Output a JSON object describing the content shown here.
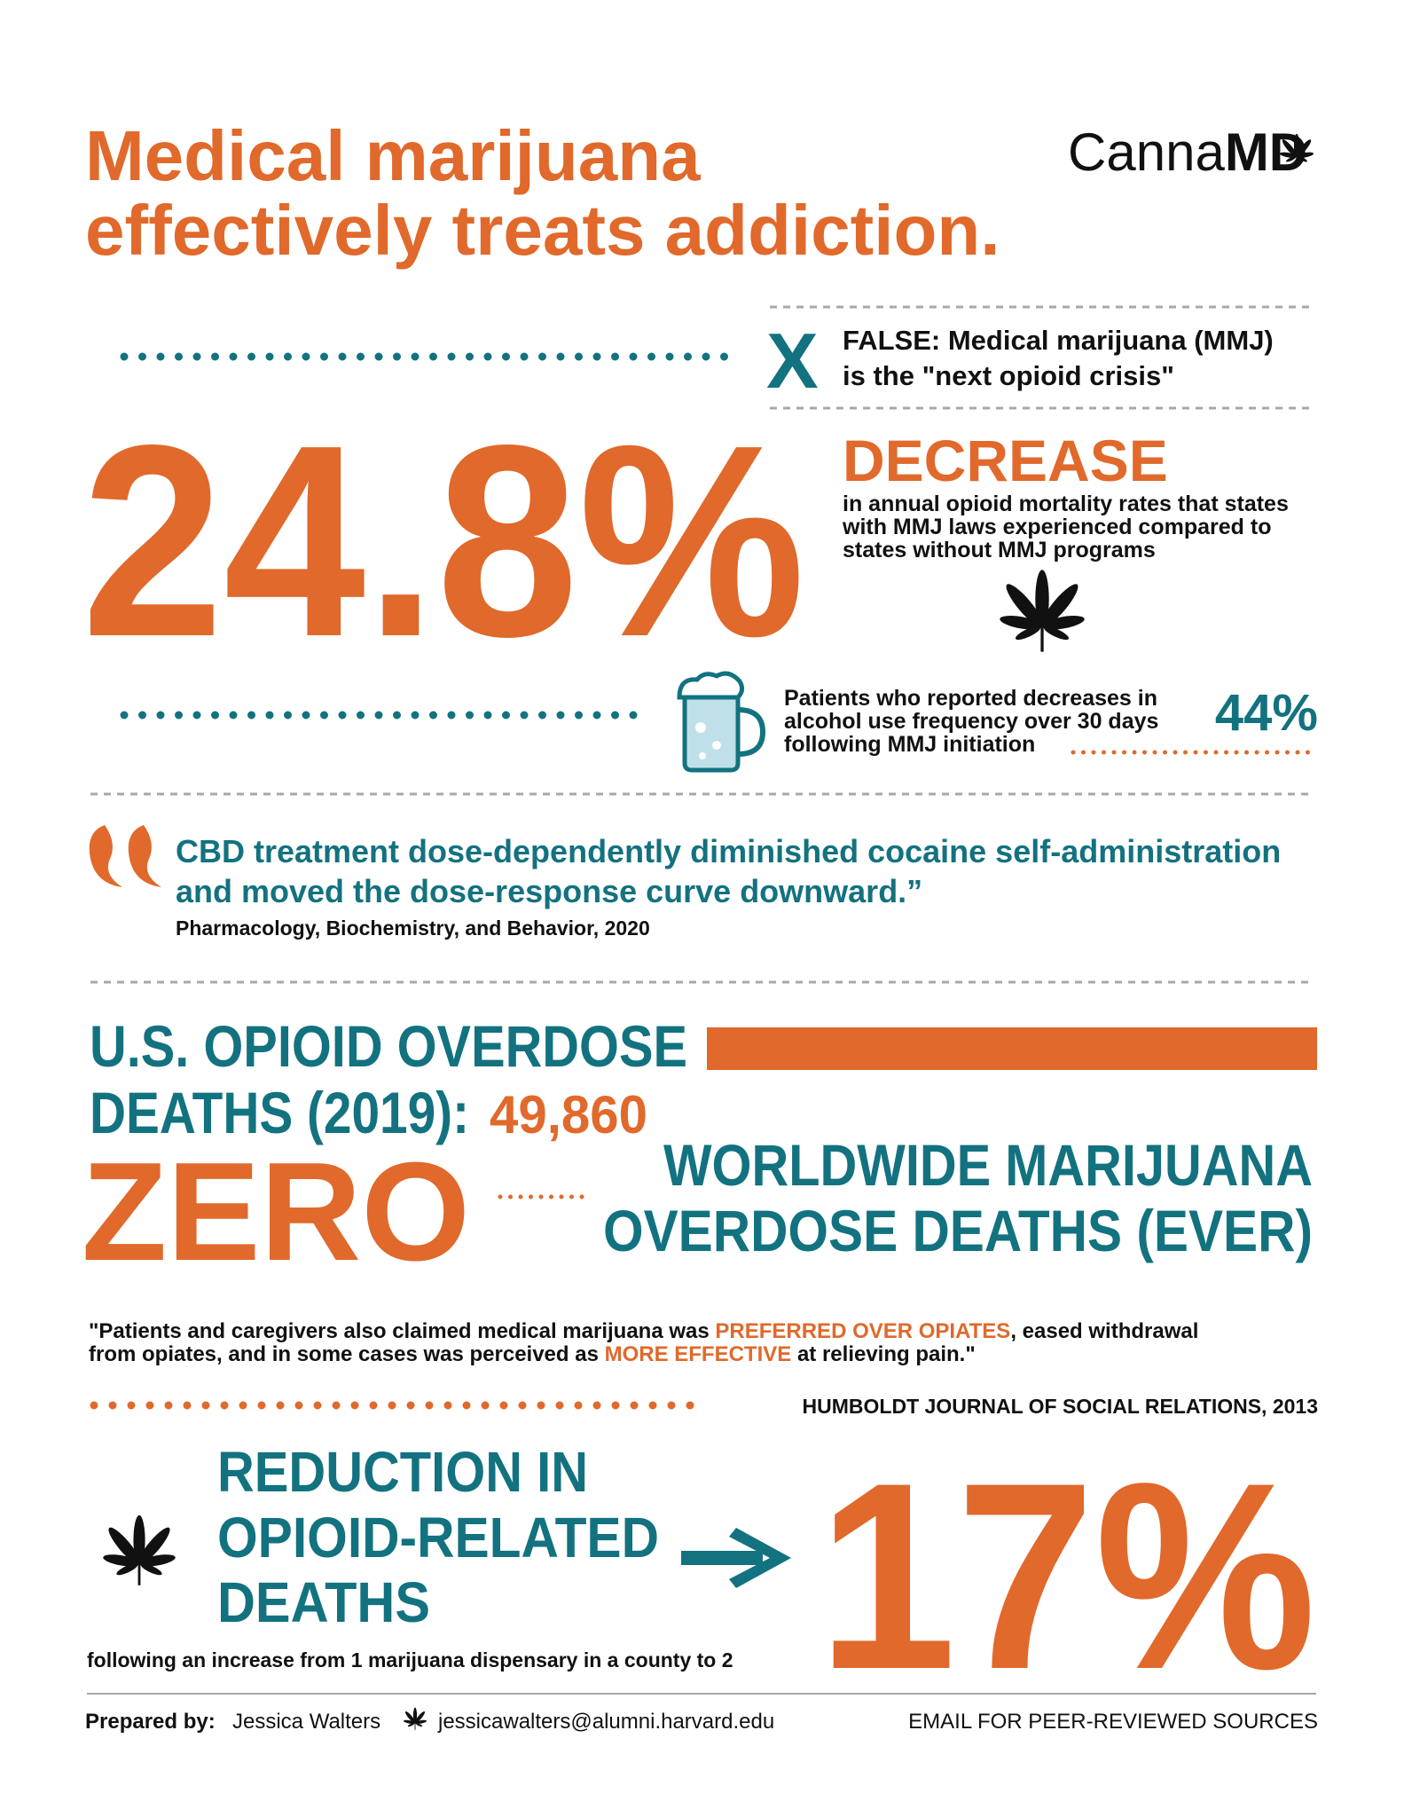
{
  "header": {
    "title": [
      "Medical marijuana",
      "effectively treats addiction."
    ],
    "logo": {
      "name": "Canna",
      "mark": "MD"
    }
  },
  "myth": {
    "marker": "X",
    "lines": [
      "FALSE: Medical marijuana (MMJ)",
      "is the \"next opioid crisis\""
    ]
  },
  "stat_opioid": {
    "value": "24.8%",
    "label": "DECREASE",
    "lines": [
      "in annual opioid mortality rates that states",
      "with MMJ laws experienced compared to",
      "states without MMJ programs"
    ]
  },
  "stat_alcohol": {
    "lines": [
      "Patients who reported decreases in",
      "alcohol use frequency over 30 days",
      "following MMJ initiation"
    ],
    "value": "44%"
  },
  "quote_cbd": {
    "lines": [
      "CBD treatment dose-dependently diminished cocaine self-administration",
      "and moved the dose-response curve downward.”"
    ],
    "source": "Pharmacology, Biochemistry, and Behavior, 2020"
  },
  "overdose": {
    "lines": [
      "U.S. OPIOID OVERDOSE",
      "DEATHS (2019):"
    ],
    "value": "49,860",
    "zero": "ZERO",
    "world_lines": [
      "WORLDWIDE MARIJUANA",
      "OVERDOSE DEATHS (EVER)"
    ]
  },
  "quote_humboldt": {
    "lines": [
      [
        "\"Patients and caregivers also claimed medical marijuana was ",
        "PREFERRED OVER OPIATES",
        ", eased withdrawal"
      ],
      [
        "from opiates, and in some cases was perceived as ",
        "MORE EFFECTIVE",
        " at relieving pain.\""
      ]
    ],
    "source": "HUMBOLDT JOURNAL OF SOCIAL RELATIONS, 2013"
  },
  "stat_dispensary": {
    "lines": [
      "REDUCTION IN",
      "OPIOID-RELATED",
      "DEATHS"
    ],
    "value": "17%",
    "note": "following an increase from 1 marijuana dispensary in a county to 2"
  },
  "footer": {
    "prepared_label": "Prepared by:",
    "author": "Jessica Walters",
    "email": "jessicawalters@alumni.harvard.edu",
    "cta": "EMAIL FOR PEER-REVIEWED SOURCES"
  }
}
